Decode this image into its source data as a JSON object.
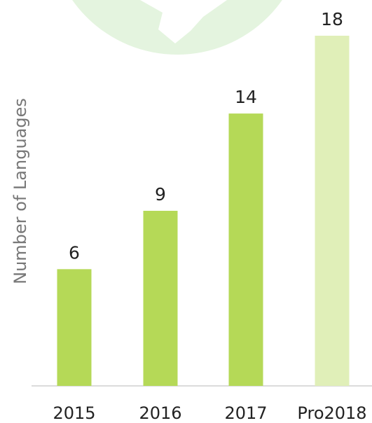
{
  "chart_data": {
    "type": "bar",
    "categories": [
      "2015",
      "2016",
      "2017",
      "Pro2018"
    ],
    "values": [
      6,
      9,
      14,
      18
    ],
    "title": "",
    "xlabel": "",
    "ylabel": "Number of Languages",
    "ylim": [
      0,
      18
    ],
    "grid": false,
    "legend": "none",
    "colors": {
      "bar": "#b5d957",
      "bar_highlight": "#e0efb8",
      "axis": "#cfcfcf",
      "label_text": "#222222",
      "ylabel_text": "#777777",
      "background_circle": "#e4f4df"
    }
  }
}
